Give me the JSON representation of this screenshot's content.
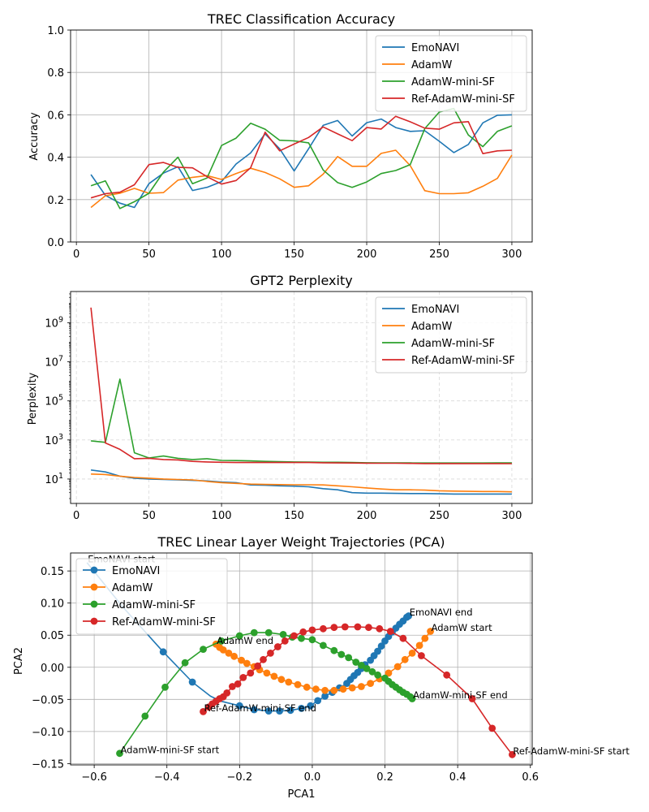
{
  "chart_data": [
    {
      "type": "line",
      "title": "TREC Classification Accuracy",
      "xlabel": "",
      "ylabel": "Accuracy",
      "xlim": [
        -4,
        314
      ],
      "ylim": [
        0.0,
        1.0
      ],
      "xticks": [
        0,
        50,
        100,
        150,
        200,
        250,
        300
      ],
      "xtick_labels": [
        "0",
        "50",
        "100",
        "150",
        "200",
        "250",
        "300"
      ],
      "yticks": [
        0.0,
        0.2,
        0.4,
        0.6,
        0.8,
        1.0
      ],
      "ytick_labels": [
        "0.0",
        "0.2",
        "0.4",
        "0.6",
        "0.8",
        "1.0"
      ],
      "grid": "solid",
      "legend": "top-right",
      "x": [
        10,
        20,
        30,
        40,
        50,
        60,
        70,
        80,
        90,
        100,
        110,
        120,
        130,
        140,
        150,
        160,
        170,
        180,
        190,
        200,
        210,
        220,
        230,
        240,
        250,
        260,
        270,
        280,
        290,
        300
      ],
      "series": [
        {
          "name": "EmoNAVI",
          "color": "#1f77b4",
          "values": [
            0.318,
            0.22,
            0.183,
            0.163,
            0.275,
            0.325,
            0.355,
            0.243,
            0.258,
            0.285,
            0.368,
            0.42,
            0.51,
            0.44,
            0.335,
            0.44,
            0.55,
            0.573,
            0.5,
            0.563,
            0.58,
            0.54,
            0.522,
            0.525,
            0.475,
            0.422,
            0.46,
            0.562,
            0.598,
            0.6
          ]
        },
        {
          "name": "AdamW",
          "color": "#ff7f0e",
          "values": [
            0.163,
            0.218,
            0.23,
            0.253,
            0.23,
            0.233,
            0.292,
            0.305,
            0.313,
            0.295,
            0.323,
            0.348,
            0.328,
            0.298,
            0.258,
            0.265,
            0.32,
            0.403,
            0.357,
            0.357,
            0.418,
            0.433,
            0.36,
            0.242,
            0.228,
            0.228,
            0.232,
            0.263,
            0.3,
            0.41
          ]
        },
        {
          "name": "AdamW-mini-SF",
          "color": "#2ca02c",
          "values": [
            0.265,
            0.288,
            0.158,
            0.19,
            0.23,
            0.33,
            0.4,
            0.275,
            0.302,
            0.455,
            0.49,
            0.56,
            0.532,
            0.48,
            0.477,
            0.468,
            0.34,
            0.28,
            0.258,
            0.283,
            0.323,
            0.337,
            0.365,
            0.535,
            0.613,
            0.63,
            0.505,
            0.45,
            0.522,
            0.548
          ]
        },
        {
          "name": "Ref-AdamW-mini-SF",
          "color": "#d62728",
          "values": [
            0.208,
            0.228,
            0.235,
            0.27,
            0.365,
            0.375,
            0.352,
            0.35,
            0.308,
            0.273,
            0.29,
            0.35,
            0.518,
            0.43,
            0.462,
            0.493,
            0.543,
            0.51,
            0.478,
            0.54,
            0.533,
            0.593,
            0.567,
            0.537,
            0.532,
            0.562,
            0.568,
            0.417,
            0.43,
            0.433
          ]
        }
      ]
    },
    {
      "type": "line",
      "title": "GPT2 Perplexity",
      "xlabel": "",
      "ylabel": "Perplexity",
      "yscale": "log",
      "xlim": [
        -4,
        314
      ],
      "ylim_log10": [
        -0.25,
        10.6
      ],
      "xticks": [
        0,
        50,
        100,
        150,
        200,
        250,
        300
      ],
      "xtick_labels": [
        "0",
        "50",
        "100",
        "150",
        "200",
        "250",
        "300"
      ],
      "yticks_exp": [
        1,
        3,
        5,
        7,
        9
      ],
      "ytick_labels": [
        {
          "base": "10",
          "exp": "1"
        },
        {
          "base": "10",
          "exp": "3"
        },
        {
          "base": "10",
          "exp": "5"
        },
        {
          "base": "10",
          "exp": "7"
        },
        {
          "base": "10",
          "exp": "9"
        }
      ],
      "grid": "dashed",
      "legend": "top-right",
      "x": [
        10,
        20,
        30,
        40,
        50,
        60,
        70,
        80,
        90,
        100,
        110,
        120,
        130,
        140,
        150,
        160,
        170,
        180,
        190,
        200,
        210,
        220,
        230,
        240,
        250,
        260,
        270,
        280,
        290,
        300
      ],
      "series": [
        {
          "name": "EmoNAVI",
          "color": "#1f77b4",
          "values": [
            29,
            23,
            14,
            11,
            10,
            9.5,
            9,
            8.5,
            8,
            7,
            6.5,
            5,
            4.8,
            4.5,
            4.3,
            4,
            3.2,
            2.8,
            2,
            1.9,
            1.9,
            1.85,
            1.8,
            1.8,
            1.75,
            1.7,
            1.7,
            1.7,
            1.7,
            1.7
          ]
        },
        {
          "name": "AdamW",
          "color": "#ff7f0e",
          "values": [
            18,
            17,
            14,
            12,
            11,
            10,
            9.5,
            9,
            7.5,
            6.5,
            6,
            5.5,
            5.3,
            5.2,
            5.1,
            5.1,
            5,
            4.5,
            4,
            3.5,
            3.1,
            2.8,
            2.8,
            2.7,
            2.5,
            2.4,
            2.35,
            2.3,
            2.3,
            2.2
          ]
        },
        {
          "name": "AdamW-mini-SF",
          "color": "#2ca02c",
          "values": [
            900,
            750,
            1300000,
            220,
            120,
            150,
            115,
            100,
            110,
            90,
            88,
            85,
            80,
            78,
            75,
            74,
            72,
            72,
            70,
            68,
            67,
            67,
            67,
            66,
            66,
            66,
            66,
            66,
            67,
            67
          ]
        },
        {
          "name": "Ref-AdamW-mini-SF",
          "color": "#d62728",
          "values": [
            6000000000,
            700,
            330,
            110,
            115,
            100,
            95,
            80,
            75,
            72,
            70,
            70,
            70,
            70,
            70,
            70,
            68,
            67,
            66,
            65,
            64,
            64,
            63,
            62,
            62,
            62,
            62,
            62,
            62,
            61
          ]
        }
      ]
    },
    {
      "type": "line",
      "title": "TREC Linear Layer Weight Trajectories (PCA)",
      "xlabel": "PCA1",
      "ylabel": "PCA2",
      "xlim": [
        -0.665,
        0.605
      ],
      "ylim": [
        -0.152,
        0.178
      ],
      "xticks": [
        -0.6,
        -0.4,
        -0.2,
        0.0,
        0.2,
        0.4,
        0.6
      ],
      "xtick_labels": [
        "−0.6",
        "−0.4",
        "−0.2",
        "0.0",
        "0.2",
        "0.4",
        "0.6"
      ],
      "yticks": [
        -0.15,
        -0.1,
        -0.05,
        0.0,
        0.05,
        0.1,
        0.15
      ],
      "ytick_labels": [
        "−0.15",
        "−0.10",
        "−0.05",
        "0.00",
        "0.05",
        "0.10",
        "0.15"
      ],
      "grid": "solid",
      "legend": "top-left",
      "series": [
        {
          "name": "EmoNAVI",
          "color": "#1f77b4",
          "markers": "first-last-dense",
          "x": [
            -0.62,
            -0.52,
            -0.41,
            -0.33,
            -0.28,
            -0.25,
            -0.2,
            -0.16,
            -0.12,
            -0.09,
            -0.06,
            -0.03,
            -0.005,
            0.015,
            0.035,
            0.055,
            0.075,
            0.095,
            0.105,
            0.115,
            0.125,
            0.135,
            0.145,
            0.16,
            0.17,
            0.18,
            0.19,
            0.2,
            0.21,
            0.22,
            0.23,
            0.24,
            0.25,
            0.26,
            0.265
          ],
          "y": [
            0.163,
            0.093,
            0.024,
            -0.023,
            -0.045,
            -0.053,
            -0.06,
            -0.066,
            -0.068,
            -0.068,
            -0.067,
            -0.064,
            -0.06,
            -0.052,
            -0.045,
            -0.039,
            -0.032,
            -0.025,
            -0.019,
            -0.013,
            -0.008,
            -0.002,
            0.004,
            0.011,
            0.018,
            0.025,
            0.033,
            0.041,
            0.048,
            0.055,
            0.061,
            0.067,
            0.072,
            0.078,
            0.08
          ],
          "point_indices": [
            2,
            3,
            6,
            7,
            8,
            9,
            10,
            11,
            12,
            13,
            14,
            15,
            16,
            17,
            18,
            19,
            20,
            21,
            22,
            23,
            24,
            25,
            26,
            27,
            28,
            29,
            30,
            31,
            32,
            33,
            34
          ]
        },
        {
          "name": "AdamW",
          "color": "#ff7f0e",
          "markers": "all",
          "x": [
            0.325,
            0.31,
            0.295,
            0.275,
            0.255,
            0.235,
            0.21,
            0.185,
            0.16,
            0.135,
            0.11,
            0.085,
            0.06,
            0.035,
            0.01,
            -0.015,
            -0.04,
            -0.065,
            -0.085,
            -0.105,
            -0.125,
            -0.145,
            -0.16,
            -0.18,
            -0.195,
            -0.215,
            -0.23,
            -0.245,
            -0.255,
            -0.265
          ],
          "y": [
            0.056,
            0.045,
            0.034,
            0.022,
            0.012,
            0.001,
            -0.009,
            -0.018,
            -0.025,
            -0.03,
            -0.032,
            -0.034,
            -0.036,
            -0.036,
            -0.034,
            -0.031,
            -0.027,
            -0.023,
            -0.019,
            -0.014,
            -0.009,
            -0.004,
            0.001,
            0.006,
            0.011,
            0.017,
            0.022,
            0.027,
            0.031,
            0.036
          ]
        },
        {
          "name": "AdamW-mini-SF",
          "color": "#2ca02c",
          "markers": "all",
          "x": [
            -0.53,
            -0.46,
            -0.405,
            -0.35,
            -0.3,
            -0.25,
            -0.2,
            -0.16,
            -0.12,
            -0.08,
            -0.055,
            -0.03,
            0.0,
            0.03,
            0.06,
            0.08,
            0.1,
            0.12,
            0.135,
            0.15,
            0.165,
            0.18,
            0.2,
            0.21,
            0.22,
            0.23,
            0.24,
            0.25,
            0.26,
            0.27,
            0.275
          ],
          "y": [
            -0.134,
            -0.076,
            -0.031,
            0.007,
            0.028,
            0.041,
            0.049,
            0.054,
            0.054,
            0.051,
            0.047,
            0.045,
            0.043,
            0.034,
            0.026,
            0.02,
            0.015,
            0.008,
            0.003,
            -0.002,
            -0.007,
            -0.012,
            -0.017,
            -0.022,
            -0.027,
            -0.031,
            -0.035,
            -0.039,
            -0.042,
            -0.046,
            -0.049
          ]
        },
        {
          "name": "Ref-AdamW-mini-SF",
          "color": "#d62728",
          "markers": "all-but-outer",
          "x": [
            -0.3,
            -0.285,
            -0.275,
            -0.265,
            -0.255,
            -0.245,
            -0.235,
            -0.22,
            -0.205,
            -0.19,
            -0.17,
            -0.15,
            -0.135,
            -0.115,
            -0.095,
            -0.075,
            -0.05,
            -0.025,
            0.0,
            0.03,
            0.06,
            0.09,
            0.125,
            0.155,
            0.185,
            0.215,
            0.25,
            0.3,
            0.37,
            0.44,
            0.495,
            0.55
          ],
          "y": [
            -0.069,
            -0.062,
            -0.057,
            -0.053,
            -0.049,
            -0.046,
            -0.04,
            -0.03,
            -0.026,
            -0.016,
            -0.009,
            0.002,
            0.012,
            0.022,
            0.032,
            0.041,
            0.049,
            0.055,
            0.058,
            0.06,
            0.062,
            0.063,
            0.063,
            0.062,
            0.06,
            0.056,
            0.045,
            0.018,
            -0.012,
            -0.049,
            -0.095,
            -0.136
          ],
          "point_indices": [
            0,
            1,
            2,
            3,
            4,
            5,
            6,
            7,
            8,
            9,
            10,
            11,
            12,
            13,
            14,
            15,
            16,
            17,
            18,
            19,
            20,
            21,
            22,
            23,
            24,
            25,
            26,
            27,
            28,
            29,
            30,
            31
          ]
        }
      ],
      "annotations": [
        {
          "text": "EmoNAVI start",
          "x": -0.62,
          "y": 0.163
        },
        {
          "text": "EmoNAVI end",
          "x": 0.265,
          "y": 0.08
        },
        {
          "text": "AdamW start",
          "x": 0.325,
          "y": 0.056
        },
        {
          "text": "AdamW end",
          "x": -0.265,
          "y": 0.036
        },
        {
          "text": "AdamW-mini-SF start",
          "x": -0.53,
          "y": -0.134
        },
        {
          "text": "AdamW-mini-SF end",
          "x": 0.275,
          "y": -0.049
        },
        {
          "text": "Ref-AdamW-mini-SF start",
          "x": 0.55,
          "y": -0.136
        },
        {
          "text": "Ref-AdamW-mini-SF end",
          "x": -0.3,
          "y": -0.069
        }
      ]
    }
  ]
}
